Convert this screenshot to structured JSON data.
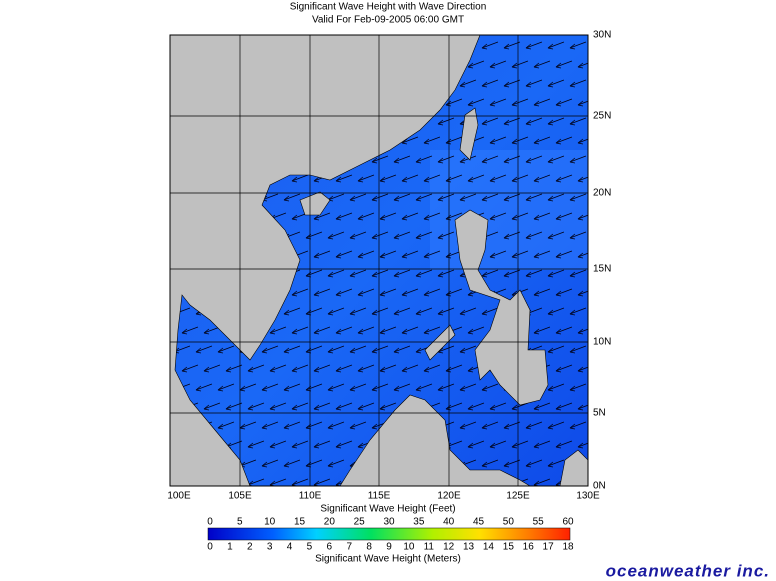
{
  "header": {
    "title": "Significant Wave Height with Wave Direction",
    "subtitle": "Valid For Feb-09-2005 06:00 GMT"
  },
  "map": {
    "longitude_labels": [
      "100E",
      "105E",
      "110E",
      "115E",
      "120E",
      "125E",
      "130E"
    ],
    "latitude_labels": [
      "30N",
      "25N",
      "20N",
      "15N",
      "10N",
      "5N",
      "0N"
    ]
  },
  "legend": {
    "feet_title": "Significant Wave Height (Feet)",
    "feet_labels": [
      "0",
      "5",
      "10",
      "15",
      "20",
      "25",
      "30",
      "35",
      "40",
      "45",
      "50",
      "55",
      "60"
    ],
    "meters_title": "Significant Wave Height (Meters)",
    "meters_labels": [
      "0",
      "1",
      "2",
      "3",
      "4",
      "5",
      "6",
      "7",
      "8",
      "9",
      "10",
      "11",
      "12",
      "13",
      "14",
      "15",
      "16",
      "17",
      "18"
    ]
  },
  "logo": "oceanweather inc."
}
